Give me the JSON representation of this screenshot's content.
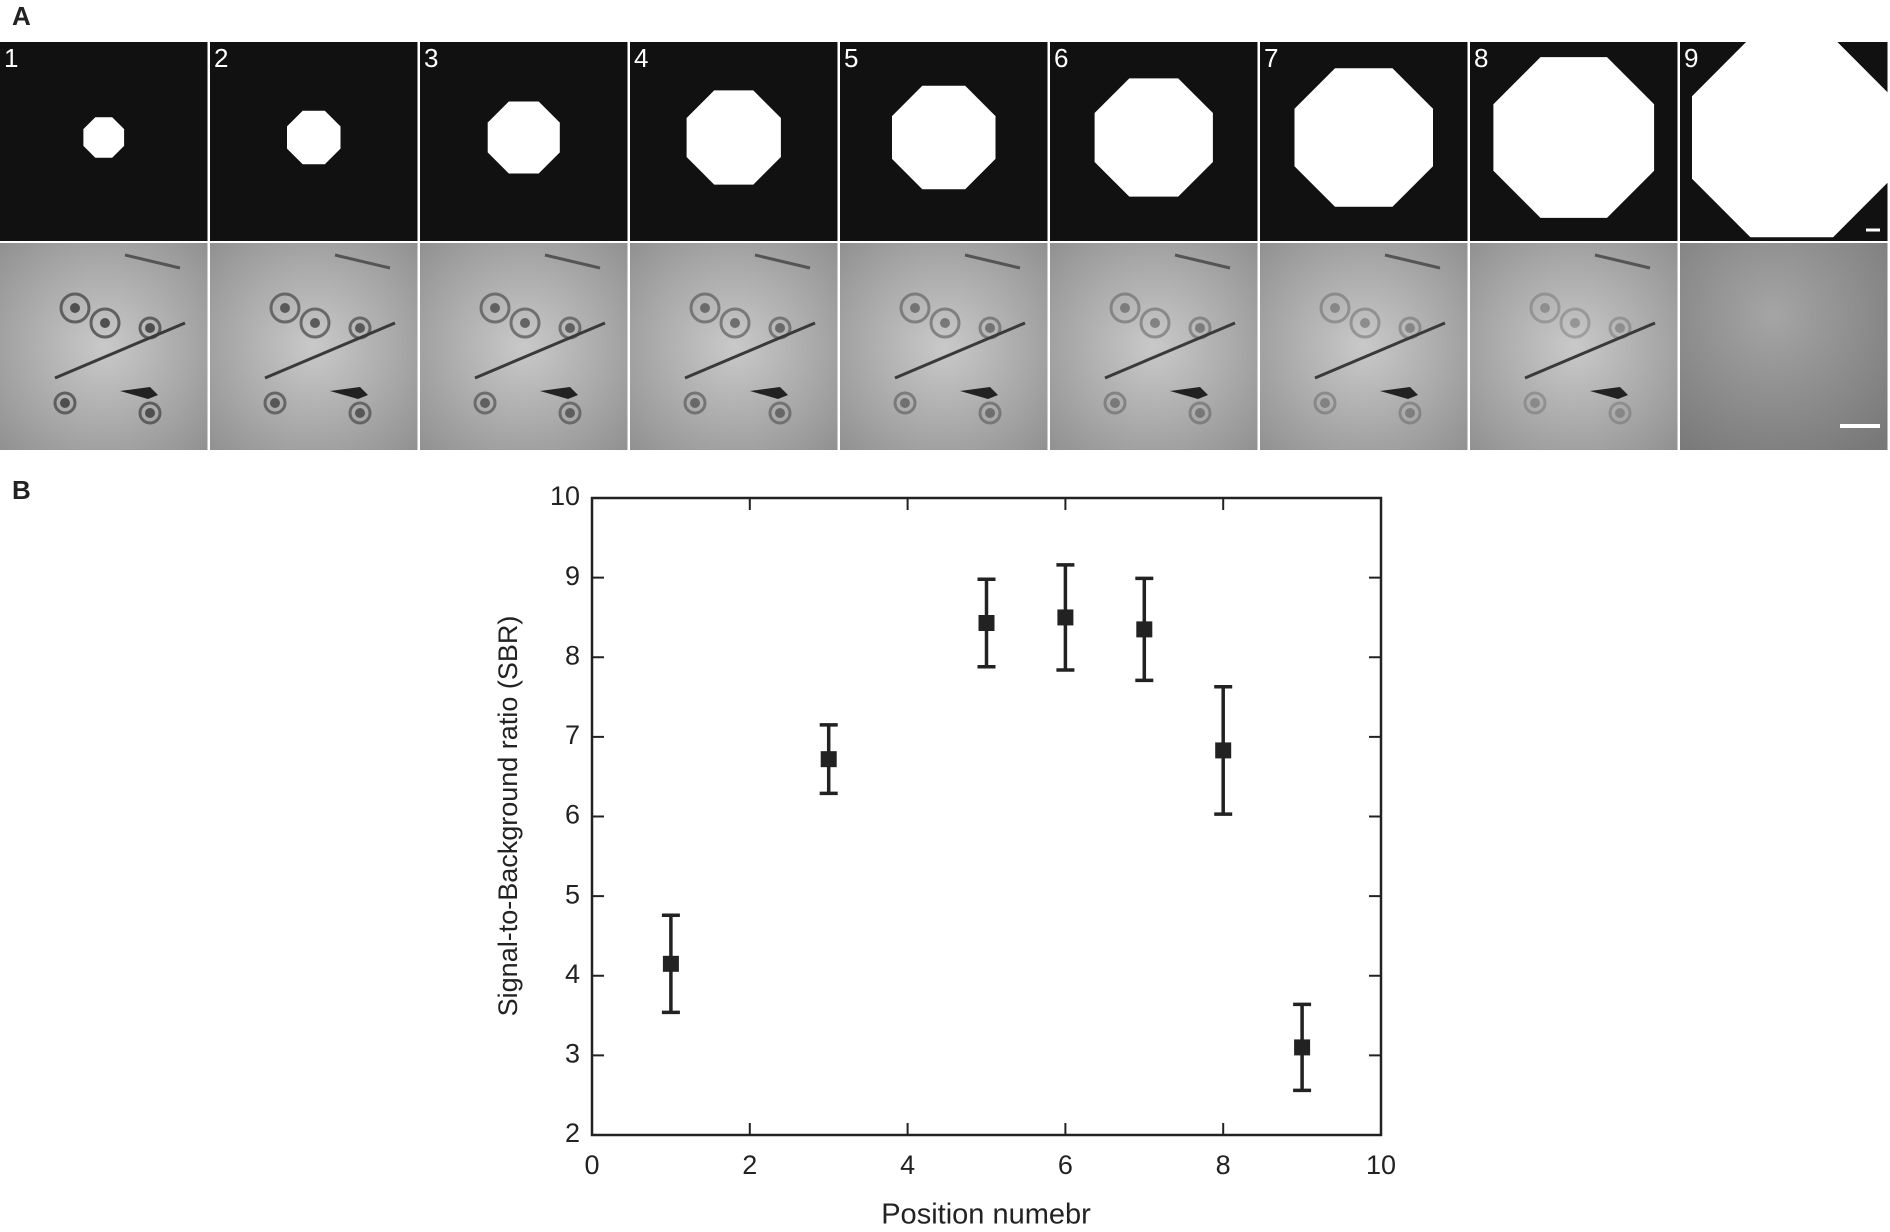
{
  "panels": {
    "a": "A",
    "b": "B"
  },
  "tiles": [
    "1",
    "2",
    "3",
    "4",
    "5",
    "6",
    "7",
    "8",
    "9"
  ],
  "chart_data": {
    "type": "scatter",
    "x_label": "Position numebr",
    "y_label": "Signal-to-Background ratio (SBR)",
    "x": [
      1,
      3,
      5,
      6,
      7,
      8,
      9
    ],
    "values": [
      4.15,
      6.72,
      8.43,
      8.5,
      8.35,
      6.83,
      3.1
    ],
    "errors": [
      0.61,
      0.43,
      0.55,
      0.66,
      0.64,
      0.8,
      0.54
    ],
    "color": "#222222",
    "xlim": [
      0,
      10
    ],
    "xticks": [
      0,
      2,
      4,
      6,
      8,
      10
    ],
    "ylim": [
      2,
      10
    ],
    "yticks": [
      2,
      3,
      4,
      5,
      6,
      7,
      8,
      9,
      10
    ]
  }
}
